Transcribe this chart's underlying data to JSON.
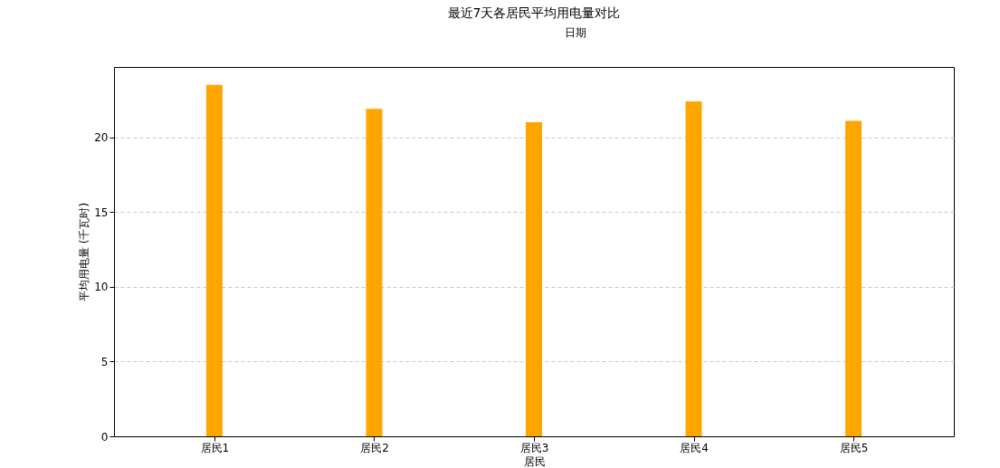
{
  "chart_data": {
    "type": "bar",
    "title": "最近7天各居民平均用电量对比",
    "xlabel": "居民",
    "ylabel": "平均用电量 (千瓦时)",
    "categories": [
      "居民1",
      "居民2",
      "居民3",
      "居民4",
      "居民5"
    ],
    "values": [
      23.5,
      21.9,
      21.0,
      22.4,
      21.1
    ],
    "color": "#ffa500",
    "ylim": [
      0,
      24.7
    ],
    "yticks": [
      0,
      5,
      10,
      15,
      20
    ],
    "grid": "y",
    "annotations": [
      "日期"
    ]
  }
}
